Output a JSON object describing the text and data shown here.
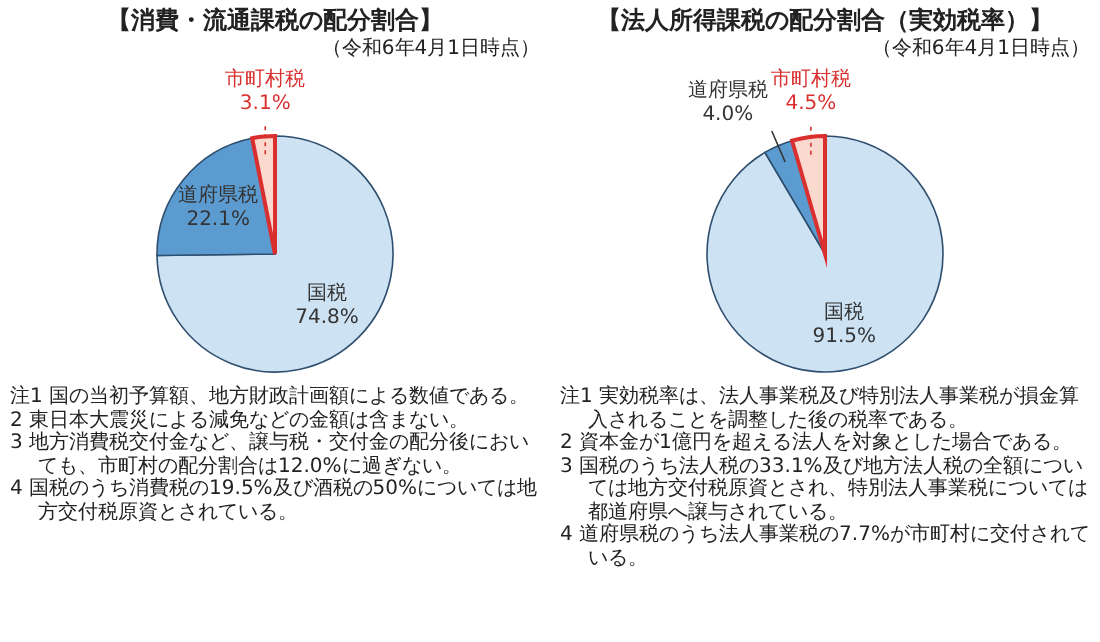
{
  "chart_data": [
    {
      "type": "pie",
      "title": "【消費・流通課税の配分割合】",
      "subtitle": "（令和6年4月1日時点）",
      "categories": [
        "国税",
        "道府県税",
        "市町村税"
      ],
      "values": [
        74.8,
        22.1,
        3.1
      ],
      "value_labels": [
        "74.8%",
        "22.1%",
        "3.1%"
      ],
      "colors": [
        "#cde2f3",
        "#5b9bd0",
        "#fbd9cf"
      ],
      "legend": false,
      "annotations": [
        "注1 国の当初予算額、地方財政計画額による数値である。",
        "2 東日本大震災による減免などの金額は含まない。",
        "3 地方消費税交付金など、譲与税・交付金の配分後においても、市町村の配分割合は12.0%に過ぎない。",
        "4 国税のうち消費税の19.5%及び酒税の50%については地方交付税原資とされている。"
      ]
    },
    {
      "type": "pie",
      "title": "【法人所得課税の配分割合（実効税率）】",
      "subtitle": "（令和6年4月1日時点）",
      "categories": [
        "国税",
        "道府県税",
        "市町村税"
      ],
      "values": [
        91.5,
        4.0,
        4.5
      ],
      "value_labels": [
        "91.5%",
        "4.0%",
        "4.5%"
      ],
      "colors": [
        "#cde2f3",
        "#5b9bd0",
        "#fbd9cf"
      ],
      "legend": false,
      "annotations": [
        "注1 実効税率は、法人事業税及び特別法人事業税が損金算入されることを調整した後の税率である。",
        "2 資本金が1億円を超える法人を対象とした場合である。",
        "3 国税のうち法人税の33.1%及び地方法人税の全額については地方交付税原資とされ、特別法人事業税については都道府県へ譲与されている。",
        "4 道府県税のうち法人事業税の7.7%が市町村に交付されている。"
      ]
    }
  ]
}
